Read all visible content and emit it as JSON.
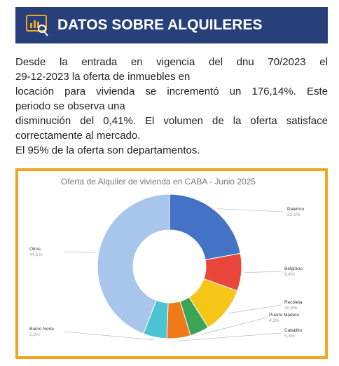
{
  "header": {
    "title": "DATOS SOBRE ALQUILERES"
  },
  "paragraph": {
    "lines": [
      "Desde la entrada en vigencia del dnu 70/2023 el",
      "29-12-2023 la oferta de inmuebles en",
      "locación para vivienda se incrementó un 176,14%. Este",
      "periodo se observa una",
      "disminución del 0,41%. El volumen de la oferta satisface",
      "correctamente al mercado.",
      "El 95% de la oferta son departamentos."
    ]
  },
  "chart_data": {
    "type": "donut",
    "title": "Oferta de Alquiler de vivienda en CABA - Junio 2025",
    "categories": [
      "Palermo",
      "Belgrano",
      "Recoleta",
      "Puerto Madero",
      "Caballito",
      "Barrio Norte",
      "Otros"
    ],
    "values": [
      22.1,
      8.4,
      10.5,
      4.3,
      5.3,
      5.3,
      44.1
    ],
    "value_labels": [
      "22,1%",
      "8,4%",
      "10,5%",
      "4,3%",
      "5,3%",
      "5,3%",
      "44,1%"
    ],
    "colors": [
      "#4472c4",
      "#e8463a",
      "#f5c518",
      "#3aa655",
      "#f07a1a",
      "#4cc3d1",
      "#a8c5ec"
    ]
  }
}
